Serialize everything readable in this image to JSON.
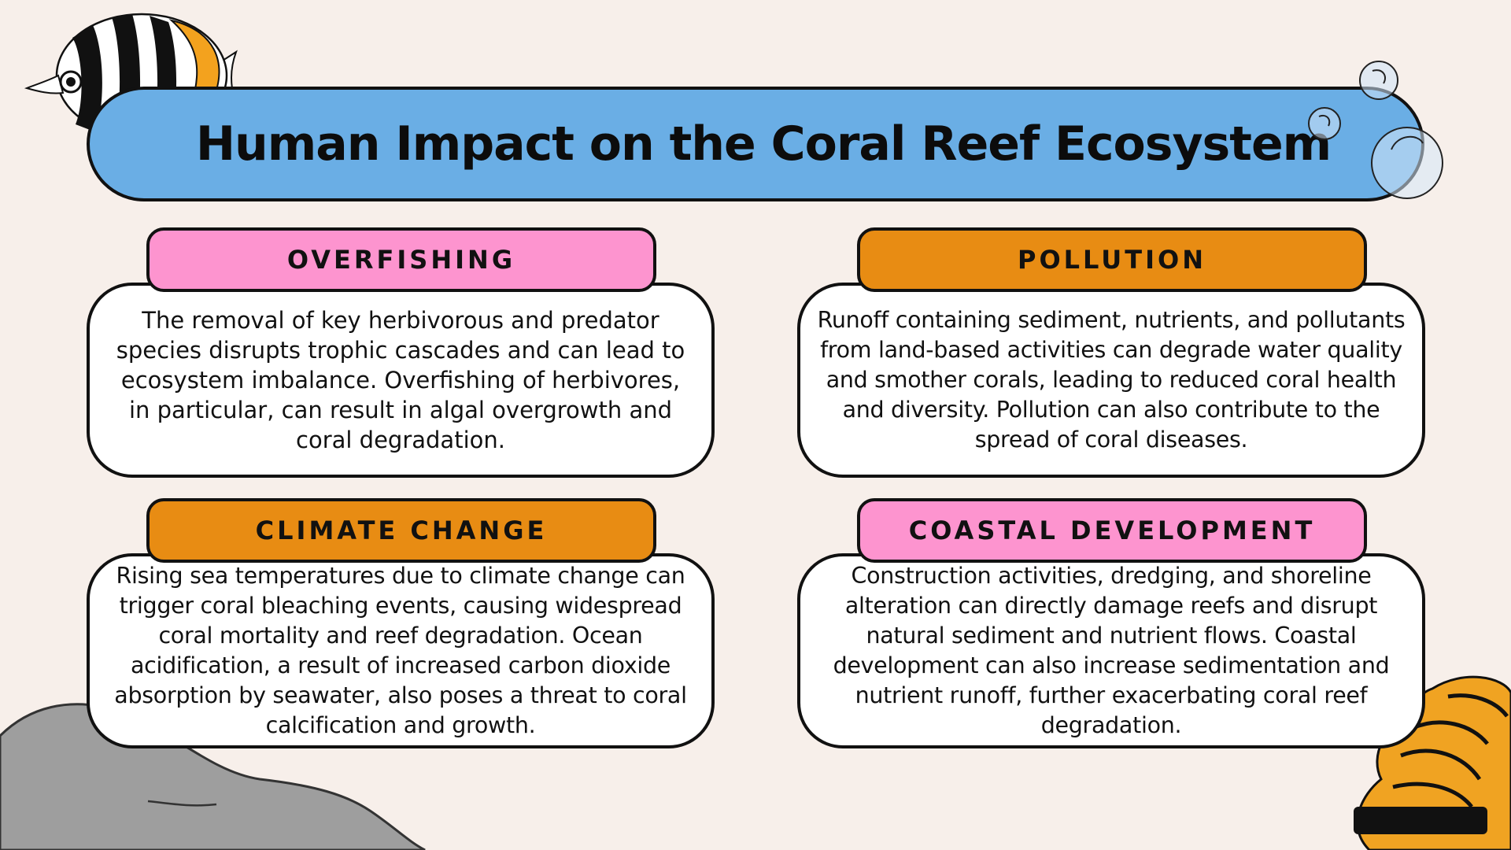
{
  "title": "Human Impact on the Coral Reef Ecosystem",
  "cards": [
    {
      "heading": "OVERFISHING",
      "body": "The removal of key herbivorous and predator species disrupts trophic cascades and can lead to ecosystem imbalance. Overfishing of herbivores, in particular, can result in algal overgrowth and coral degradation."
    },
    {
      "heading": "POLLUTION",
      "body": "Runoff containing sediment, nutrients, and pollutants from land-based activities can degrade water quality and smother corals, leading to reduced coral health and diversity. Pollution can also contribute to the spread of coral diseases."
    },
    {
      "heading": "CLIMATE CHANGE",
      "body": "Rising sea temperatures due to climate change can trigger coral bleaching events, causing widespread coral mortality and reef degradation. Ocean acidification, a result of increased carbon dioxide absorption by seawater, also poses a threat to coral calcification and growth."
    },
    {
      "heading": "COASTAL DEVELOPMENT",
      "body": "Construction activities, dredging, and shoreline alteration can directly damage reefs and disrupt natural sediment and nutrient flows. Coastal development can also increase sedimentation and nutrient runoff, further exacerbating coral reef degradation."
    }
  ],
  "colors": {
    "background": "#f7efea",
    "title_banner": "#6aaee5",
    "pink_header": "#fd94cf",
    "orange_header": "#e88c13",
    "card": "#ffffff",
    "outline": "#111111"
  },
  "decorations": [
    "butterflyfish-illustration",
    "bubbles-icon",
    "rock-illustration",
    "coral-illustration"
  ]
}
